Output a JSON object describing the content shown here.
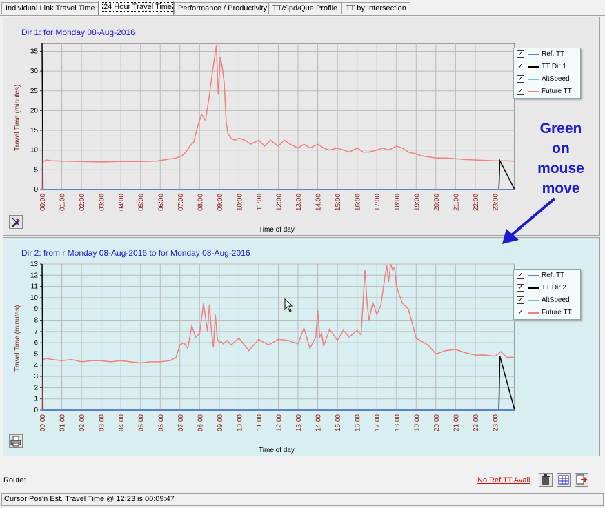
{
  "tabs": [
    {
      "label": "Individual Link Travel Time"
    },
    {
      "label": "24 Hour Travel Time"
    },
    {
      "label": "Performance / Productivity"
    },
    {
      "label": "TT/Spd/Que Profile"
    },
    {
      "label": "TT by Intersection"
    }
  ],
  "panel1": {
    "title": "Dir 1:  for Monday 08-Aug-2016",
    "legend": [
      {
        "label": "Ref. TT",
        "color": "#6080c8"
      },
      {
        "label": "TT Dir 1",
        "color": "#000000"
      },
      {
        "label": "AltSpeed",
        "color": "#6ec0d8"
      },
      {
        "label": "Future TT",
        "color": "#f08080"
      }
    ]
  },
  "panel2": {
    "title": "Dir 2:  from r Monday 08-Aug-2016 to  for Monday 08-Aug-2016",
    "legend": [
      {
        "label": "Ref. TT",
        "color": "#6080c8"
      },
      {
        "label": "TT Dir 2",
        "color": "#000000"
      },
      {
        "label": "AltSpeed",
        "color": "#6ec0d8"
      },
      {
        "label": "Future TT",
        "color": "#f08080"
      }
    ]
  },
  "annotation": {
    "lines": [
      "Green",
      "on",
      "mouse",
      "move"
    ],
    "color": "#1c1ccc"
  },
  "footer": {
    "route_label": "Route:",
    "no_ref_link": "No Ref TT Avail"
  },
  "status_text": "Cursor Pos'n Est. Travel Time @ 12:23 is 00:09:47",
  "chart_data": [
    {
      "type": "line",
      "title": "Dir 1:  for Monday 08-Aug-2016",
      "xlabel": "Time of day",
      "ylabel": "Travel Time (minutes)",
      "ylim": [
        0,
        37
      ],
      "yticks": [
        0,
        5,
        10,
        15,
        20,
        25,
        30,
        35
      ],
      "x_ticks": [
        "00:00",
        "01:00",
        "02:00",
        "03:00",
        "04:00",
        "05:00",
        "06:00",
        "07:00",
        "08:00",
        "09:00",
        "10:00",
        "11:00",
        "12:00",
        "13:00",
        "14:00",
        "15:00",
        "16:00",
        "17:00",
        "18:00",
        "19:00",
        "20:00",
        "21:00",
        "22:00",
        "23:00"
      ],
      "xlim_hours": [
        0,
        24
      ],
      "grid": true,
      "legend_position": "top-right",
      "series": [
        {
          "name": "Future TT",
          "color": "#f08080",
          "x": [
            0,
            0.05,
            0.2,
            0.5,
            1,
            2,
            3,
            4,
            5,
            5.8,
            6.3,
            6.8,
            7.1,
            7.3,
            7.5,
            7.7,
            7.9,
            8.1,
            8.3,
            8.5,
            8.6,
            8.75,
            8.85,
            8.95,
            9.05,
            9.15,
            9.25,
            9.35,
            9.45,
            9.6,
            9.8,
            10,
            10.3,
            10.6,
            11,
            11.3,
            11.6,
            12,
            12.3,
            12.6,
            13,
            13.3,
            13.6,
            14,
            14.3,
            14.6,
            15,
            15.3,
            15.6,
            16,
            16.3,
            16.6,
            17,
            17.3,
            17.6,
            18,
            18.3,
            18.6,
            19,
            19.3,
            19.6,
            20,
            20.5,
            21,
            21.5,
            22,
            22.5,
            23,
            23.5,
            24
          ],
          "y": [
            0,
            7,
            7.5,
            7.3,
            7.2,
            7.1,
            7,
            7.1,
            7.1,
            7.2,
            7.6,
            8,
            8.5,
            9.5,
            11,
            12,
            16,
            19,
            17.5,
            24,
            28,
            33,
            36.5,
            24,
            33.5,
            31,
            27,
            17,
            14,
            13,
            12.5,
            13,
            12.5,
            11.5,
            12.5,
            11,
            12.5,
            11,
            12.5,
            11.5,
            10.5,
            11.5,
            10.5,
            11.5,
            10.5,
            10,
            10.5,
            10,
            9.5,
            10.5,
            9.5,
            9.5,
            10,
            10.5,
            10,
            11,
            10.5,
            9.5,
            9,
            8.5,
            8.3,
            8,
            8,
            7.8,
            7.6,
            7.5,
            7.4,
            7.3,
            7.3,
            7.2
          ]
        },
        {
          "name": "TT Dir 1",
          "color": "#000000",
          "x": [
            0,
            0.05,
            23.2,
            23.25,
            24
          ],
          "y": [
            37,
            0,
            0,
            7.3,
            0
          ]
        },
        {
          "name": "Ref. TT",
          "color": "#6080c8",
          "x": [
            0,
            24
          ],
          "y": [
            0,
            0
          ]
        },
        {
          "name": "AltSpeed",
          "color": "#6ec0d8",
          "x": [],
          "y": []
        }
      ]
    },
    {
      "type": "line",
      "title": "Dir 2:  from r Monday 08-Aug-2016 to  for Monday 08-Aug-2016",
      "xlabel": "Time of day",
      "ylabel": "Travel Time (minutes)",
      "ylim": [
        0,
        13
      ],
      "yticks": [
        0,
        1,
        2,
        3,
        4,
        5,
        6,
        7,
        8,
        9,
        10,
        11,
        12,
        13
      ],
      "x_ticks": [
        "00:00",
        "01:00",
        "02:00",
        "03:00",
        "04:00",
        "05:00",
        "06:00",
        "07:00",
        "08:00",
        "09:00",
        "10:00",
        "11:00",
        "12:00",
        "13:00",
        "14:00",
        "15:00",
        "16:00",
        "17:00",
        "18:00",
        "19:00",
        "20:00",
        "21:00",
        "22:00",
        "23:00"
      ],
      "xlim_hours": [
        0,
        24
      ],
      "grid": true,
      "legend_position": "top-right",
      "series": [
        {
          "name": "Future TT",
          "color": "#f08080",
          "x": [
            0,
            0.05,
            0.2,
            0.5,
            1,
            1.5,
            2,
            2.5,
            3,
            3.5,
            4,
            4.5,
            5,
            5.5,
            6,
            6.5,
            6.8,
            7,
            7.2,
            7.4,
            7.6,
            7.8,
            8,
            8.2,
            8.4,
            8.5,
            8.6,
            8.7,
            8.8,
            8.9,
            9,
            9.1,
            9.2,
            9.4,
            9.6,
            10,
            10.5,
            11,
            11.5,
            12,
            12.5,
            13,
            13.3,
            13.6,
            13.9,
            14,
            14.1,
            14.2,
            14.3,
            14.6,
            15,
            15.3,
            15.6,
            16,
            16.2,
            16.4,
            16.5,
            16.6,
            16.8,
            17,
            17.2,
            17.3,
            17.5,
            17.6,
            17.7,
            17.8,
            17.9,
            18,
            18.1,
            18.3,
            18.6,
            19,
            19.3,
            19.6,
            20,
            20.5,
            21,
            21.5,
            22,
            22.5,
            23,
            23.3,
            23.6,
            24
          ],
          "y": [
            0,
            4.5,
            4.6,
            4.5,
            4.4,
            4.5,
            4.3,
            4.4,
            4.4,
            4.3,
            4.4,
            4.3,
            4.2,
            4.3,
            4.3,
            4.4,
            4.7,
            5.8,
            6,
            5.5,
            7.5,
            6.5,
            6.8,
            9.5,
            7,
            9.4,
            7,
            5.6,
            8.5,
            6.3,
            6,
            6.1,
            5.9,
            6.2,
            5.8,
            6.4,
            5.3,
            6.3,
            5.8,
            6.3,
            6.2,
            5.9,
            7.3,
            5.5,
            6.5,
            8.9,
            6.5,
            6.8,
            5.7,
            7.2,
            6.2,
            7.1,
            6.5,
            7.1,
            6.7,
            12.5,
            9.7,
            8,
            9.6,
            8.5,
            9.3,
            10.5,
            12.9,
            11.4,
            13,
            12.5,
            12.7,
            11,
            10.5,
            9.5,
            9,
            6.4,
            6.1,
            5.8,
            5,
            5.3,
            5.4,
            5.1,
            4.9,
            4.9,
            4.8,
            5.2,
            4.7,
            4.7
          ]
        },
        {
          "name": "TT Dir 2",
          "color": "#000000",
          "x": [
            0,
            0.05,
            23.2,
            23.25,
            24
          ],
          "y": [
            13,
            0,
            0,
            4.8,
            0
          ]
        },
        {
          "name": "Ref. TT",
          "color": "#6080c8",
          "x": [
            0,
            24
          ],
          "y": [
            0,
            0
          ]
        },
        {
          "name": "AltSpeed",
          "color": "#6ec0d8",
          "x": [],
          "y": []
        }
      ]
    }
  ]
}
